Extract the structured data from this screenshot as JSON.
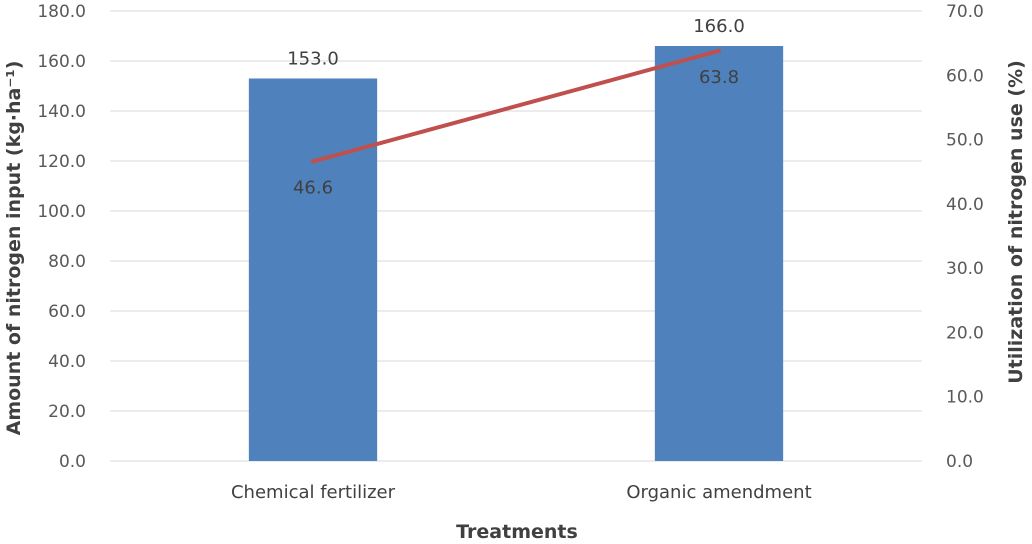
{
  "chart_data": {
    "type": "bar",
    "categories": [
      "Chemical fertilizer",
      "Organic amendment"
    ],
    "series": [
      {
        "kind": "bar",
        "axis": "left",
        "values": [
          153.0,
          166.0
        ],
        "labels": [
          "153.0",
          "166.0"
        ],
        "color": "#4f81bd"
      },
      {
        "kind": "line",
        "axis": "right",
        "values": [
          46.6,
          63.8
        ],
        "labels": [
          "46.6",
          "63.8"
        ],
        "color": "#c0504d"
      }
    ],
    "xlabel": "Treatments",
    "ylabel": "Amount of nitrogen input (kg·ha⁻¹)",
    "y2label": "Utilization of nitrogen use (%)",
    "ylim": [
      0,
      180
    ],
    "y2lim": [
      0,
      70
    ],
    "yticks": [
      "0.0",
      "20.0",
      "40.0",
      "60.0",
      "80.0",
      "100.0",
      "120.0",
      "140.0",
      "160.0",
      "180.0"
    ],
    "y2ticks": [
      "0.0",
      "10.0",
      "20.0",
      "30.0",
      "40.0",
      "50.0",
      "60.0",
      "70.0"
    ],
    "grid": true,
    "legend": "none"
  }
}
